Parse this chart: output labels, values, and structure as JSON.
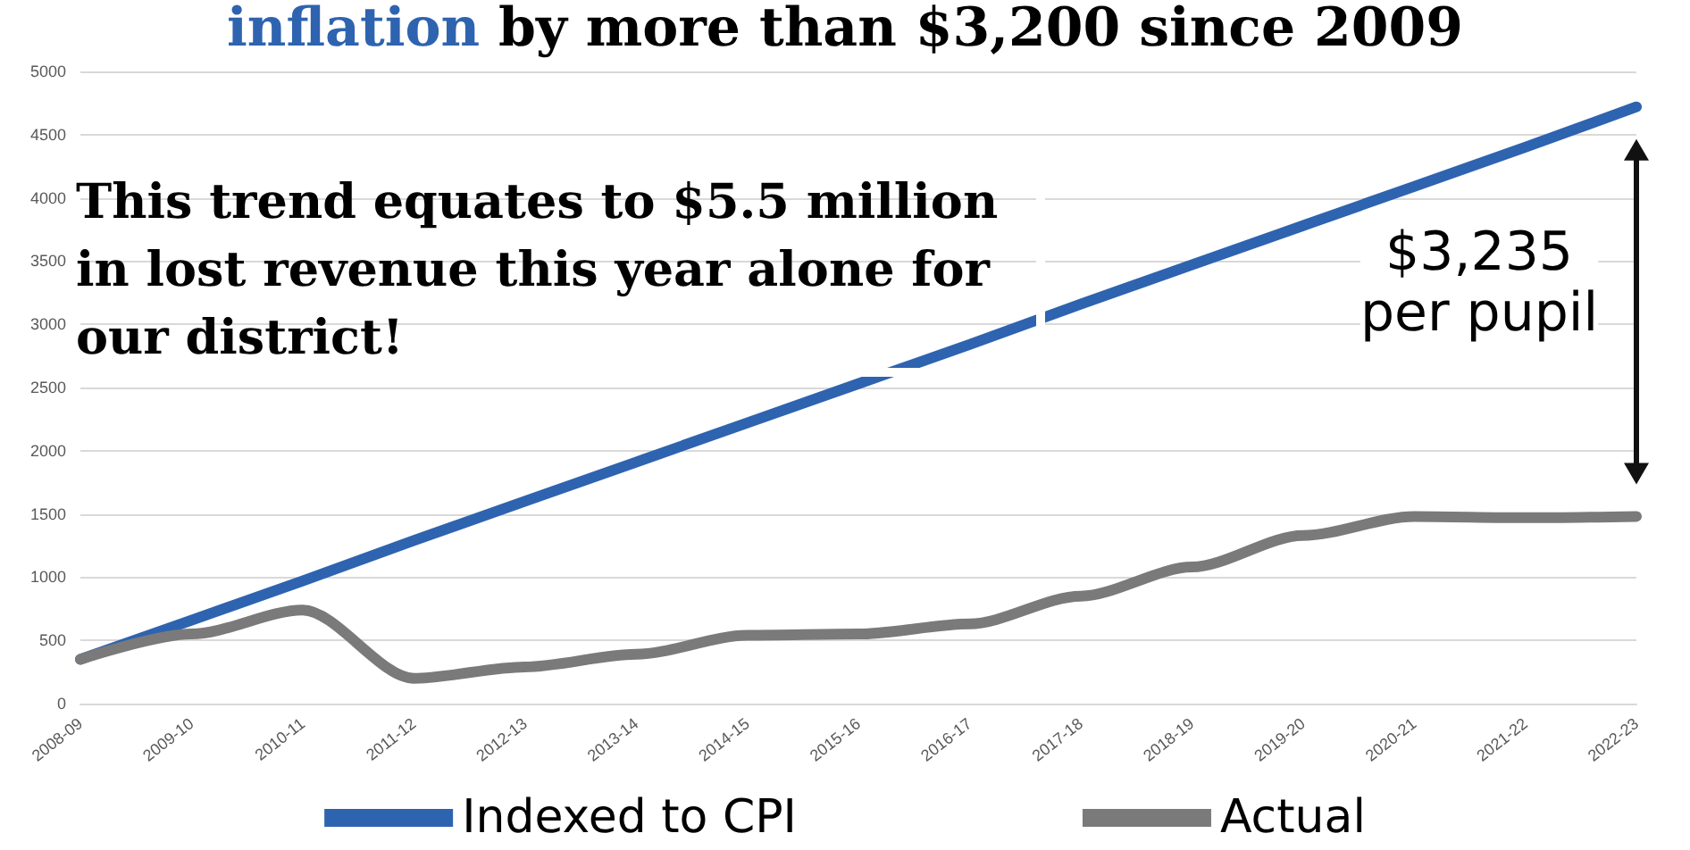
{
  "chart_data": {
    "type": "line",
    "title": "inflation by more than $3,200 since 2009",
    "categories": [
      "2008-09",
      "2009-10",
      "2010-11",
      "2011-12",
      "2012-13",
      "2013-14",
      "2014-15",
      "2015-16",
      "2016-17",
      "2017-18",
      "2018-19",
      "2019-20",
      "2020-21",
      "2021-22",
      "2022-23"
    ],
    "series": [
      {
        "name": "Indexed to CPI",
        "color": "#2e63b0",
        "values": [
          350,
          660,
          970,
          1290,
          1600,
          1910,
          2220,
          2530,
          2840,
          3160,
          3470,
          3780,
          4090,
          4400,
          4720
        ]
      },
      {
        "name": "Actual",
        "color": "#7a7a7a",
        "values": [
          350,
          550,
          740,
          200,
          290,
          390,
          540,
          550,
          630,
          850,
          1080,
          1330,
          1480,
          1470,
          1480
        ]
      }
    ],
    "ylim": [
      0,
      5000
    ],
    "yticks": [
      0,
      500,
      1000,
      1500,
      2000,
      2500,
      3000,
      3500,
      4000,
      4500,
      5000
    ],
    "grid": "y",
    "legend": "bottom",
    "marker": "none",
    "line_style": "solid",
    "annotations": [
      "This trend equates to $5.5 million in lost revenue this year alone for our district!",
      "$3,235 per pupil"
    ]
  }
}
